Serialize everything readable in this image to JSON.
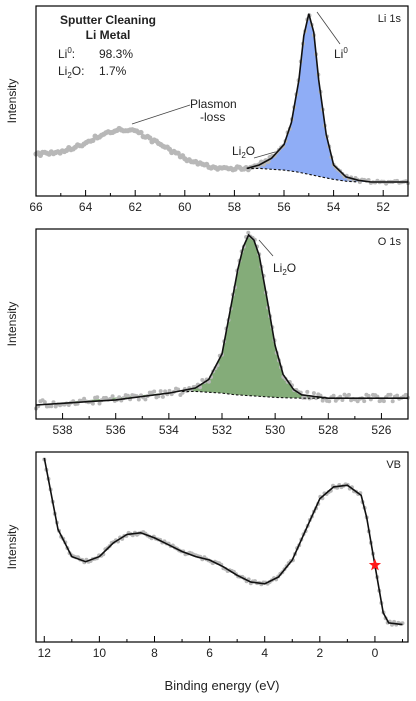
{
  "chart_data": [
    {
      "type": "scatter",
      "panel_label": "Li 1s",
      "ylabel": "Intensity",
      "xlim": [
        66,
        51
      ],
      "x_ticks": [
        66,
        64,
        62,
        60,
        58,
        56,
        54,
        52
      ],
      "title_lines": [
        "Sputter Cleaning",
        "Li Metal"
      ],
      "composition": [
        {
          "species_main": "Li",
          "species_sup": "0",
          "species_sub": "",
          "species_tail": ":",
          "value": "98.3%"
        },
        {
          "species_main": "Li",
          "species_sup": "",
          "species_sub": "2",
          "species_tail": "O:",
          "value": "1.7%"
        }
      ],
      "annotations": [
        {
          "main": "Plasmon",
          "line2": "-loss",
          "sup": "",
          "sub": "",
          "tail": ""
        },
        {
          "main": "Li",
          "line2": "",
          "sup": "",
          "sub": "2",
          "tail": "O"
        },
        {
          "main": "Li",
          "line2": "",
          "sup": "0",
          "sub": "",
          "tail": ""
        }
      ],
      "peak_color": "#7b9ff5",
      "series": [
        {
          "name": "",
          "role": "data",
          "x": [
            66,
            65.5,
            65,
            64.5,
            64,
            63.5,
            63,
            62.5,
            62,
            61.5,
            61,
            60.5,
            60,
            59.5,
            59,
            58.5,
            58,
            57.5,
            57,
            56.5,
            56,
            55.7,
            55.4,
            55.2,
            55.0,
            54.8,
            54.6,
            54.3,
            54,
            53.5,
            53,
            52.5,
            52,
            51.5,
            51
          ],
          "y": [
            0.16,
            0.17,
            0.18,
            0.2,
            0.23,
            0.27,
            0.3,
            0.31,
            0.3,
            0.26,
            0.22,
            0.18,
            0.14,
            0.11,
            0.09,
            0.08,
            0.08,
            0.08,
            0.1,
            0.14,
            0.22,
            0.35,
            0.6,
            0.86,
            0.99,
            0.88,
            0.6,
            0.28,
            0.1,
            0.03,
            0.01,
            0.0,
            0.0,
            0.0,
            0.0
          ]
        },
        {
          "name": "",
          "role": "fit",
          "x": [
            57.5,
            57,
            56.5,
            56,
            55.7,
            55.4,
            55.2,
            55.0,
            54.8,
            54.6,
            54.3,
            54,
            53.5,
            53,
            52.5,
            52,
            51.5,
            51
          ],
          "y": [
            0.08,
            0.1,
            0.14,
            0.22,
            0.35,
            0.6,
            0.86,
            0.99,
            0.88,
            0.6,
            0.28,
            0.1,
            0.03,
            0.01,
            0.0,
            0.0,
            0.0,
            0.0
          ]
        },
        {
          "name": "",
          "role": "background",
          "x": [
            57.5,
            57,
            56.5,
            56,
            55.5,
            55,
            54.5,
            54,
            53.5,
            53
          ],
          "y": [
            0.08,
            0.08,
            0.075,
            0.07,
            0.06,
            0.045,
            0.03,
            0.015,
            0.005,
            0.0
          ]
        }
      ]
    },
    {
      "type": "scatter",
      "panel_label": "O 1s",
      "ylabel": "Intensity",
      "xlim": [
        539,
        525
      ],
      "x_ticks": [
        538,
        536,
        534,
        532,
        530,
        528,
        526
      ],
      "annotations": [
        {
          "main": "Li",
          "line2": "",
          "sup": "",
          "sub": "2",
          "tail": "O"
        }
      ],
      "peak_color": "#6e9e61",
      "series": [
        {
          "name": "",
          "role": "data",
          "x": [
            539,
            538.5,
            538,
            537.5,
            537,
            536.5,
            536,
            535.5,
            535,
            534.5,
            534,
            533.5,
            533,
            532.5,
            532,
            531.7,
            531.4,
            531.2,
            531.0,
            530.8,
            530.6,
            530.3,
            530.0,
            529.7,
            529.3,
            529,
            528.5,
            528,
            527.5,
            527,
            526.5,
            526,
            525.5,
            525
          ],
          "y": [
            0.0,
            0.01,
            0.01,
            0.02,
            0.02,
            0.03,
            0.03,
            0.04,
            0.05,
            0.06,
            0.07,
            0.08,
            0.1,
            0.15,
            0.3,
            0.55,
            0.8,
            0.93,
            1.0,
            0.97,
            0.88,
            0.62,
            0.35,
            0.18,
            0.09,
            0.06,
            0.05,
            0.04,
            0.04,
            0.04,
            0.04,
            0.04,
            0.04,
            0.04
          ]
        },
        {
          "name": "",
          "role": "fit",
          "x": [
            539,
            538,
            537,
            536,
            535,
            534,
            533,
            532.5,
            532,
            531.7,
            531.4,
            531.2,
            531.0,
            530.8,
            530.6,
            530.3,
            530.0,
            529.7,
            529.3,
            529,
            528.5,
            528,
            527,
            526,
            525
          ],
          "y": [
            0.0,
            0.01,
            0.02,
            0.03,
            0.05,
            0.07,
            0.1,
            0.15,
            0.3,
            0.55,
            0.8,
            0.93,
            1.0,
            0.97,
            0.88,
            0.62,
            0.35,
            0.18,
            0.09,
            0.06,
            0.05,
            0.04,
            0.04,
            0.04,
            0.04
          ]
        },
        {
          "name": "",
          "role": "background",
          "x": [
            533.5,
            533,
            532.5,
            532,
            531.5,
            531,
            530.5,
            530,
            529.5,
            529,
            528.5,
            528
          ],
          "y": [
            0.08,
            0.08,
            0.075,
            0.07,
            0.06,
            0.055,
            0.05,
            0.045,
            0.042,
            0.04,
            0.04,
            0.04
          ]
        }
      ]
    },
    {
      "type": "line",
      "panel_label": "VB",
      "ylabel": "Intensity",
      "xlabel": "Binding energy (eV)",
      "xlim": [
        12.3,
        -1.2
      ],
      "x_ticks": [
        12,
        10,
        8,
        6,
        4,
        2,
        0
      ],
      "marker": {
        "x": 0,
        "y": 0.37,
        "color": "#ff1a1a"
      },
      "series": [
        {
          "name": "",
          "role": "fit",
          "x": [
            12,
            11.5,
            11,
            10.5,
            10,
            9.5,
            9,
            8.5,
            8,
            7.5,
            7,
            6.5,
            6,
            5.5,
            5,
            4.5,
            4,
            3.5,
            3,
            2.5,
            2,
            1.5,
            1,
            0.5,
            0.3,
            0,
            -0.3,
            -0.5,
            -1
          ],
          "y": [
            1.0,
            0.58,
            0.42,
            0.39,
            0.42,
            0.5,
            0.55,
            0.56,
            0.53,
            0.49,
            0.45,
            0.42,
            0.4,
            0.36,
            0.31,
            0.27,
            0.26,
            0.3,
            0.4,
            0.58,
            0.76,
            0.83,
            0.84,
            0.78,
            0.65,
            0.37,
            0.09,
            0.03,
            0.02
          ]
        }
      ]
    }
  ]
}
